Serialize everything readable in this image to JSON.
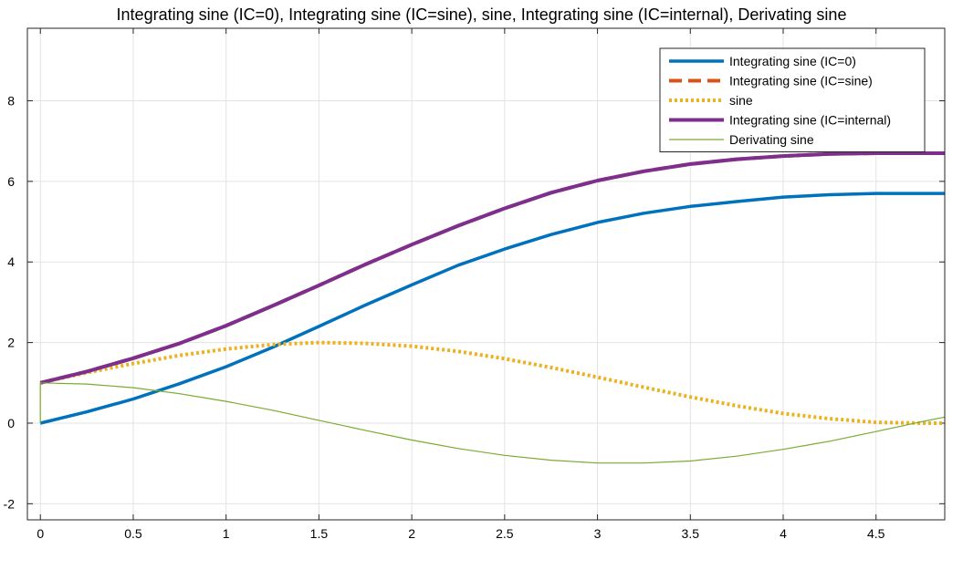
{
  "chart_data": {
    "type": "line",
    "title": "Integrating sine (IC=0), Integrating sine (IC=sine), sine, Integrating sine (IC=internal), Derivating sine",
    "xlabel": "",
    "ylabel": "",
    "xlim": [
      -0.07,
      4.87
    ],
    "ylim": [
      -2.4,
      9.8
    ],
    "grid": true,
    "legend_position": "top-right",
    "xticks": [
      0,
      0.5,
      1,
      1.5,
      2,
      2.5,
      3,
      3.5,
      4,
      4.5
    ],
    "xtick_labels": [
      "0",
      "0.5",
      "1",
      "1.5",
      "2",
      "2.5",
      "3",
      "3.5",
      "4",
      "4.5"
    ],
    "yticks": [
      -2,
      0,
      2,
      4,
      6,
      8
    ],
    "ytick_labels": [
      "-2",
      "0",
      "2",
      "4",
      "6",
      "8"
    ],
    "x": [
      0,
      0.25,
      0.5,
      0.75,
      1,
      1.25,
      1.5,
      1.75,
      2,
      2.25,
      2.5,
      2.75,
      3,
      3.25,
      3.5,
      3.75,
      4,
      4.25,
      4.5,
      4.75,
      4.87
    ],
    "series": [
      {
        "name": "Integrating sine (IC=0)",
        "color": "#0072BD",
        "style": "solid",
        "values": [
          0.0,
          0.28,
          0.6,
          0.98,
          1.4,
          1.88,
          2.4,
          2.93,
          3.43,
          3.92,
          4.32,
          4.68,
          4.98,
          5.21,
          5.38,
          5.5,
          5.61,
          5.67,
          5.7,
          5.7,
          5.7
        ]
      },
      {
        "name": "Integrating sine (IC=sine)",
        "color": "#D95319",
        "style": "dashed",
        "values": [
          1.0,
          1.28,
          1.61,
          1.98,
          2.42,
          2.91,
          3.42,
          3.94,
          4.43,
          4.9,
          5.33,
          5.72,
          6.02,
          6.25,
          6.43,
          6.55,
          6.63,
          6.68,
          6.7,
          6.7,
          6.7
        ]
      },
      {
        "name": "sine",
        "color": "#EDB120",
        "style": "dotted",
        "values": [
          1.0,
          1.25,
          1.48,
          1.68,
          1.84,
          1.95,
          2.0,
          1.98,
          1.91,
          1.78,
          1.6,
          1.38,
          1.14,
          0.89,
          0.65,
          0.43,
          0.24,
          0.11,
          0.02,
          0.0,
          0.0
        ]
      },
      {
        "name": "Integrating sine (IC=internal)",
        "color": "#7E2F8E",
        "style": "solid",
        "values": [
          1.0,
          1.28,
          1.61,
          1.98,
          2.42,
          2.91,
          3.42,
          3.94,
          4.43,
          4.9,
          5.33,
          5.72,
          6.02,
          6.25,
          6.43,
          6.55,
          6.63,
          6.68,
          6.7,
          6.7,
          6.7
        ]
      },
      {
        "name": "Derivating sine",
        "color": "#77AC30",
        "style": "solid",
        "values": [
          1.0,
          0.97,
          0.88,
          0.73,
          0.54,
          0.32,
          0.07,
          -0.18,
          -0.42,
          -0.63,
          -0.8,
          -0.92,
          -0.99,
          -0.99,
          -0.94,
          -0.82,
          -0.65,
          -0.45,
          -0.21,
          0.04,
          0.15
        ]
      }
    ]
  }
}
